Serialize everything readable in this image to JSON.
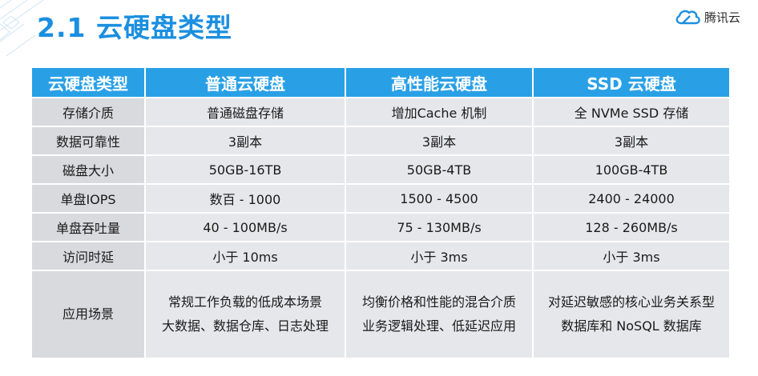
{
  "slide": {
    "title": "2.1 云硬盘类型",
    "logo_text": "腾讯云",
    "accent_color": "#1b8fe0",
    "logo_icon": "cloud-logo-icon"
  },
  "table": {
    "headers": [
      "云硬盘类型",
      "普通云硬盘",
      "高性能云硬盘",
      "SSD 云硬盘"
    ],
    "rows": [
      {
        "label": "存储介质",
        "cells": [
          "普通磁盘存储",
          "增加Cache 机制",
          "全 NVMe SSD 存储"
        ]
      },
      {
        "label": "数据可靠性",
        "cells": [
          "3副本",
          "3副本",
          "3副本"
        ]
      },
      {
        "label": "磁盘大小",
        "cells": [
          "50GB-16TB",
          "50GB-4TB",
          "100GB-4TB"
        ]
      },
      {
        "label": "单盘IOPS",
        "cells": [
          "数百 - 1000",
          "1500 - 4500",
          "2400 - 24000"
        ]
      },
      {
        "label": "单盘吞吐量",
        "cells": [
          "40 - 100MB/s",
          "75 - 130MB/s",
          "128 - 260MB/s"
        ]
      },
      {
        "label": "访问时延",
        "cells": [
          "小于 10ms",
          "小于 3ms",
          "小于 3ms"
        ]
      }
    ],
    "usage_row": {
      "label": "应用场景",
      "cells": [
        {
          "line1": "常规工作负载的低成本场景",
          "line2": "大数据、数据仓库、日志处理"
        },
        {
          "line1": "均衡价格和性能的混合介质",
          "line2": "业务逻辑处理、低延迟应用"
        },
        {
          "line1": "对延迟敏感的核心业务关系型",
          "line2": "数据库和 NoSQL 数据库"
        }
      ]
    }
  }
}
